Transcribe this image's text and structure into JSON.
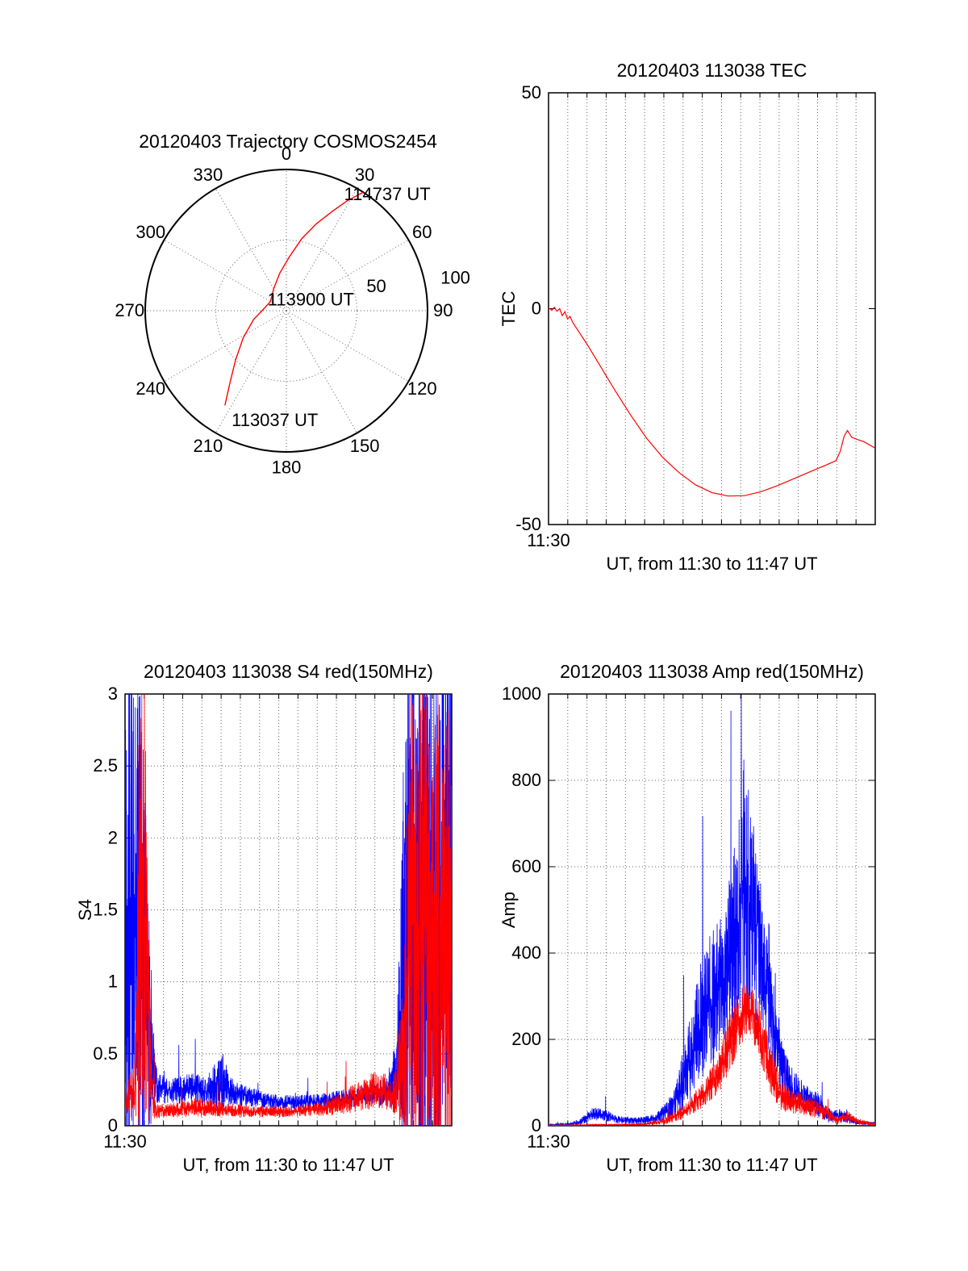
{
  "figure": {
    "background": "#ffffff"
  },
  "colors": {
    "axis": "#000000",
    "grid": "#606060",
    "red": "#ff0000",
    "blue": "#0000ff"
  },
  "chart_data": [
    {
      "id": "trajectory",
      "type": "polar_trajectory",
      "title": "20120403 Trajectory COSMOS2454",
      "azimuth_tick_labels": [
        "0",
        "30",
        "60",
        "90",
        "120",
        "150",
        "180",
        "210",
        "240",
        "270",
        "300",
        "330"
      ],
      "radial_max": 100,
      "radial_minor_circle": 50,
      "radial_tick_labels": [
        {
          "label": "50",
          "az": 75,
          "r": 66
        },
        {
          "label": "100",
          "az": 79,
          "r": 122
        }
      ],
      "annotations": [
        {
          "label": "114737 UT",
          "az": 41,
          "r": 109
        },
        {
          "label": "113900 UT",
          "az": 66,
          "r": 19
        },
        {
          "label": "113037 UT",
          "az": 186,
          "r": 78
        }
      ],
      "series": [
        {
          "name": "satellite-track",
          "color": "#ff0000",
          "points_az_r": [
            [
              213,
              80
            ],
            [
              218,
              65
            ],
            [
              226,
              50
            ],
            [
              238,
              36
            ],
            [
              255,
              24
            ],
            [
              275,
              16
            ],
            [
              300,
              13
            ],
            [
              330,
              18
            ],
            [
              350,
              27
            ],
            [
              3,
              38
            ],
            [
              12,
              52
            ],
            [
              19,
              65
            ],
            [
              25,
              78
            ],
            [
              29,
              89
            ],
            [
              33,
              100
            ]
          ]
        }
      ]
    },
    {
      "id": "tec",
      "type": "line",
      "title": "20120403 113038 TEC",
      "ylabel": "TEC",
      "xlabel": "UT, from 11:30 to 11:47 UT",
      "xtick_labels": [
        "11:30"
      ],
      "ylim": [
        -50,
        50
      ],
      "yticks": [
        -50,
        0,
        50
      ],
      "ytick_labels": [
        "-50",
        "0",
        "50"
      ],
      "x_divisions": 17,
      "grid_x": true,
      "grid_y": false,
      "series": [
        {
          "name": "TEC",
          "color": "#ff0000",
          "points": [
            [
              0.0,
              0.2
            ],
            [
              0.01,
              -0.4
            ],
            [
              0.018,
              0.3
            ],
            [
              0.026,
              -0.6
            ],
            [
              0.034,
              0.0
            ],
            [
              0.042,
              -1.6
            ],
            [
              0.05,
              -0.7
            ],
            [
              0.058,
              -2.4
            ],
            [
              0.066,
              -1.8
            ],
            [
              0.074,
              -3.2
            ],
            [
              0.09,
              -5.0
            ],
            [
              0.12,
              -8.5
            ],
            [
              0.16,
              -13.5
            ],
            [
              0.2,
              -18.5
            ],
            [
              0.25,
              -24.5
            ],
            [
              0.3,
              -30.0
            ],
            [
              0.35,
              -34.5
            ],
            [
              0.4,
              -38.0
            ],
            [
              0.45,
              -40.8
            ],
            [
              0.5,
              -42.6
            ],
            [
              0.55,
              -43.4
            ],
            [
              0.6,
              -43.3
            ],
            [
              0.65,
              -42.4
            ],
            [
              0.7,
              -41.0
            ],
            [
              0.75,
              -39.4
            ],
            [
              0.8,
              -37.8
            ],
            [
              0.85,
              -36.2
            ],
            [
              0.88,
              -35.2
            ],
            [
              0.893,
              -33.0
            ],
            [
              0.905,
              -29.5
            ],
            [
              0.915,
              -28.2
            ],
            [
              0.928,
              -29.8
            ],
            [
              0.945,
              -30.3
            ],
            [
              0.965,
              -30.8
            ],
            [
              1.0,
              -32.3
            ]
          ]
        }
      ]
    },
    {
      "id": "s4",
      "type": "noisy_line",
      "title": "20120403 113038 S4 red(150MHz)",
      "ylabel": "S4",
      "xlabel": "UT, from 11:30 to 11:47 UT",
      "xtick_labels": [
        "11:30"
      ],
      "ylim": [
        0,
        3
      ],
      "yticks": [
        0,
        0.5,
        1,
        1.5,
        2,
        2.5,
        3
      ],
      "ytick_labels": [
        "0",
        "0.5",
        "1",
        "1.5",
        "2",
        "2.5",
        "3"
      ],
      "x_divisions": 17,
      "grid_x": true,
      "grid_y": true,
      "series": [
        {
          "name": "S4-blue",
          "color": "#0000ff",
          "seed": 42,
          "envelope": [
            [
              0.0,
              1.5,
              2.0
            ],
            [
              0.04,
              1.5,
              2.0
            ],
            [
              0.055,
              1.2,
              1.6
            ],
            [
              0.07,
              0.8,
              1.0
            ],
            [
              0.085,
              0.4,
              0.35
            ],
            [
              0.1,
              0.26,
              0.1
            ],
            [
              0.15,
              0.24,
              0.09
            ],
            [
              0.2,
              0.26,
              0.11
            ],
            [
              0.25,
              0.24,
              0.1
            ],
            [
              0.3,
              0.3,
              0.22
            ],
            [
              0.32,
              0.24,
              0.1
            ],
            [
              0.38,
              0.2,
              0.07
            ],
            [
              0.45,
              0.17,
              0.05
            ],
            [
              0.52,
              0.16,
              0.05
            ],
            [
              0.6,
              0.17,
              0.06
            ],
            [
              0.68,
              0.19,
              0.07
            ],
            [
              0.75,
              0.21,
              0.08
            ],
            [
              0.8,
              0.23,
              0.1
            ],
            [
              0.83,
              0.35,
              0.25
            ],
            [
              0.845,
              0.9,
              0.9
            ],
            [
              0.86,
              1.5,
              2.0
            ],
            [
              1.0,
              1.5,
              2.0
            ]
          ]
        },
        {
          "name": "S4-red-150MHz",
          "color": "#ff0000",
          "seed": 7,
          "envelope": [
            [
              0.0,
              0.18,
              0.12
            ],
            [
              0.03,
              0.25,
              0.2
            ],
            [
              0.042,
              1.3,
              1.7
            ],
            [
              0.06,
              1.6,
              1.6
            ],
            [
              0.072,
              0.8,
              1.0
            ],
            [
              0.082,
              0.25,
              0.2
            ],
            [
              0.095,
              0.1,
              0.05
            ],
            [
              0.15,
              0.11,
              0.05
            ],
            [
              0.22,
              0.13,
              0.07
            ],
            [
              0.3,
              0.11,
              0.05
            ],
            [
              0.4,
              0.1,
              0.04
            ],
            [
              0.5,
              0.1,
              0.04
            ],
            [
              0.6,
              0.12,
              0.05
            ],
            [
              0.66,
              0.15,
              0.08
            ],
            [
              0.7,
              0.19,
              0.1
            ],
            [
              0.74,
              0.24,
              0.13
            ],
            [
              0.78,
              0.26,
              0.14
            ],
            [
              0.82,
              0.2,
              0.11
            ],
            [
              0.85,
              0.5,
              0.6
            ],
            [
              0.87,
              1.4,
              1.8
            ],
            [
              1.0,
              1.4,
              1.8
            ]
          ]
        }
      ]
    },
    {
      "id": "amp",
      "type": "noisy_line",
      "title": "20120403 113038 Amp red(150MHz)",
      "ylabel": "Amp",
      "xlabel": "UT, from 11:30 to 11:47 UT",
      "xtick_labels": [
        "11:30"
      ],
      "ylim": [
        0,
        1000
      ],
      "yticks": [
        0,
        200,
        400,
        600,
        800,
        1000
      ],
      "ytick_labels": [
        "0",
        "200",
        "400",
        "600",
        "800",
        "1000"
      ],
      "x_divisions": 17,
      "grid_x": true,
      "grid_y": true,
      "series": [
        {
          "name": "Amp-blue",
          "color": "#0000ff",
          "seed": 11,
          "envelope": [
            [
              0.0,
              2,
              2
            ],
            [
              0.06,
              4,
              3
            ],
            [
              0.1,
              10,
              8
            ],
            [
              0.13,
              28,
              15
            ],
            [
              0.17,
              25,
              14
            ],
            [
              0.22,
              12,
              8
            ],
            [
              0.28,
              12,
              8
            ],
            [
              0.33,
              18,
              10
            ],
            [
              0.38,
              45,
              30
            ],
            [
              0.42,
              120,
              80
            ],
            [
              0.45,
              200,
              130
            ],
            [
              0.48,
              260,
              160
            ],
            [
              0.51,
              300,
              170
            ],
            [
              0.54,
              340,
              160
            ],
            [
              0.57,
              430,
              230
            ],
            [
              0.595,
              560,
              300
            ],
            [
              0.615,
              520,
              260
            ],
            [
              0.64,
              430,
              200
            ],
            [
              0.665,
              330,
              140
            ],
            [
              0.69,
              230,
              100
            ],
            [
              0.715,
              130,
              70
            ],
            [
              0.745,
              90,
              45
            ],
            [
              0.775,
              70,
              35
            ],
            [
              0.805,
              55,
              30
            ],
            [
              0.835,
              45,
              28
            ],
            [
              0.865,
              20,
              14
            ],
            [
              0.9,
              25,
              16
            ],
            [
              0.93,
              12,
              9
            ],
            [
              0.96,
              6,
              5
            ],
            [
              1.0,
              5,
              4
            ]
          ]
        },
        {
          "name": "Amp-red-150MHz",
          "color": "#ff0000",
          "seed": 23,
          "envelope": [
            [
              0.0,
              1,
              1
            ],
            [
              0.2,
              2,
              2
            ],
            [
              0.3,
              4,
              3
            ],
            [
              0.36,
              12,
              8
            ],
            [
              0.42,
              35,
              18
            ],
            [
              0.47,
              70,
              30
            ],
            [
              0.52,
              120,
              45
            ],
            [
              0.56,
              200,
              70
            ],
            [
              0.59,
              260,
              70
            ],
            [
              0.62,
              270,
              60
            ],
            [
              0.65,
              210,
              70
            ],
            [
              0.68,
              130,
              55
            ],
            [
              0.71,
              70,
              35
            ],
            [
              0.745,
              55,
              28
            ],
            [
              0.78,
              50,
              25
            ],
            [
              0.815,
              40,
              22
            ],
            [
              0.85,
              30,
              18
            ],
            [
              0.885,
              12,
              9
            ],
            [
              0.915,
              22,
              13
            ],
            [
              0.945,
              10,
              7
            ],
            [
              1.0,
              3,
              3
            ]
          ]
        }
      ]
    }
  ]
}
